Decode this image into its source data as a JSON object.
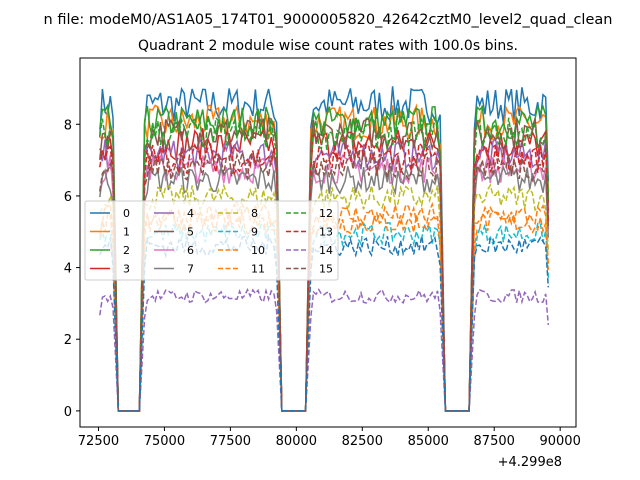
{
  "figure": {
    "suptitle": "n file: modeM0/AS1A05_174T01_9000005820_42642cztM0_level2_quad_clean",
    "title": "Quadrant 2 module wise count rates with 100.0s bins."
  },
  "chart_data": {
    "type": "line",
    "title": "Quadrant 2 module wise count rates with 100.0s bins.",
    "xlabel": "",
    "ylabel": "",
    "x_offset_label": "+4.299e8",
    "xlim": [
      71800,
      90600
    ],
    "ylim": [
      -0.45,
      9.85
    ],
    "x_ticks": [
      72500,
      75000,
      77500,
      80000,
      82500,
      85000,
      87500,
      90000
    ],
    "x_tick_labels": [
      "72500",
      "75000",
      "77500",
      "80000",
      "82500",
      "85000",
      "87500",
      "90000"
    ],
    "y_ticks": [
      0,
      2,
      4,
      6,
      8
    ],
    "y_tick_labels": [
      "0",
      "2",
      "4",
      "6",
      "8"
    ],
    "bin_seconds": 100,
    "segments": [
      {
        "start": 72550,
        "end": 73050
      },
      {
        "start": 74250,
        "end": 79250
      },
      {
        "start": 80550,
        "end": 85450
      },
      {
        "start": 86750,
        "end": 89550
      }
    ],
    "gaps_at_zero": [
      {
        "start": 73250,
        "end": 74050
      },
      {
        "start": 79450,
        "end": 80350
      },
      {
        "start": 85650,
        "end": 86550
      }
    ],
    "legend": {
      "location": "center-left",
      "columns": 4
    },
    "series": [
      {
        "name": "0",
        "color": "#1f77b4",
        "style": "solid",
        "level": 8.55
      },
      {
        "name": "1",
        "color": "#ff7f0e",
        "style": "solid",
        "level": 8.05
      },
      {
        "name": "2",
        "color": "#2ca02c",
        "style": "solid",
        "level": 8.05
      },
      {
        "name": "3",
        "color": "#d62728",
        "style": "solid",
        "level": 7.45
      },
      {
        "name": "4",
        "color": "#9467bd",
        "style": "solid",
        "level": 7.15
      },
      {
        "name": "5",
        "color": "#8c564b",
        "style": "solid",
        "level": 7.75
      },
      {
        "name": "6",
        "color": "#e377c2",
        "style": "solid",
        "level": 6.75
      },
      {
        "name": "7",
        "color": "#7f7f7f",
        "style": "solid",
        "level": 6.45
      },
      {
        "name": "8",
        "color": "#bcbd22",
        "style": "dashed",
        "level": 5.95
      },
      {
        "name": "9",
        "color": "#17becf",
        "style": "dashed",
        "level": 4.95
      },
      {
        "name": "10",
        "color": "#ff7f0e",
        "style": "dashed",
        "level": 5.25
      },
      {
        "name": "11",
        "color": "#ff7f0e",
        "style": "dashed",
        "level": 5.45
      },
      {
        "name": "12",
        "color": "#2ca02c",
        "style": "dashed",
        "level": 7.75
      },
      {
        "name": "13",
        "color": "#d62728",
        "style": "dashed",
        "level": 7.05
      },
      {
        "name": "14",
        "color": "#9467bd",
        "style": "dashed",
        "level": 3.2
      },
      {
        "name": "15",
        "color": "#8c564b",
        "style": "dashed",
        "level": 6.85
      },
      {
        "name": "0",
        "color": "#1f77b4",
        "style": "dashed",
        "level": 4.6
      }
    ],
    "legend_entries": [
      {
        "label": "0",
        "color": "#1f77b4",
        "style": "solid"
      },
      {
        "label": "1",
        "color": "#ff7f0e",
        "style": "solid"
      },
      {
        "label": "2",
        "color": "#2ca02c",
        "style": "solid"
      },
      {
        "label": "3",
        "color": "#d62728",
        "style": "solid"
      },
      {
        "label": "4",
        "color": "#9467bd",
        "style": "solid"
      },
      {
        "label": "5",
        "color": "#8c564b",
        "style": "solid"
      },
      {
        "label": "6",
        "color": "#e377c2",
        "style": "solid"
      },
      {
        "label": "7",
        "color": "#7f7f7f",
        "style": "solid"
      },
      {
        "label": "8",
        "color": "#bcbd22",
        "style": "dashed"
      },
      {
        "label": "9",
        "color": "#17becf",
        "style": "dashed"
      },
      {
        "label": "10",
        "color": "#ff7f0e",
        "style": "dashed"
      },
      {
        "label": "11",
        "color": "#ff7f0e",
        "style": "dashed"
      },
      {
        "label": "12",
        "color": "#2ca02c",
        "style": "dashed"
      },
      {
        "label": "13",
        "color": "#d62728",
        "style": "dashed"
      },
      {
        "label": "14",
        "color": "#9467bd",
        "style": "dashed"
      },
      {
        "label": "15",
        "color": "#8c564b",
        "style": "dashed"
      }
    ]
  }
}
